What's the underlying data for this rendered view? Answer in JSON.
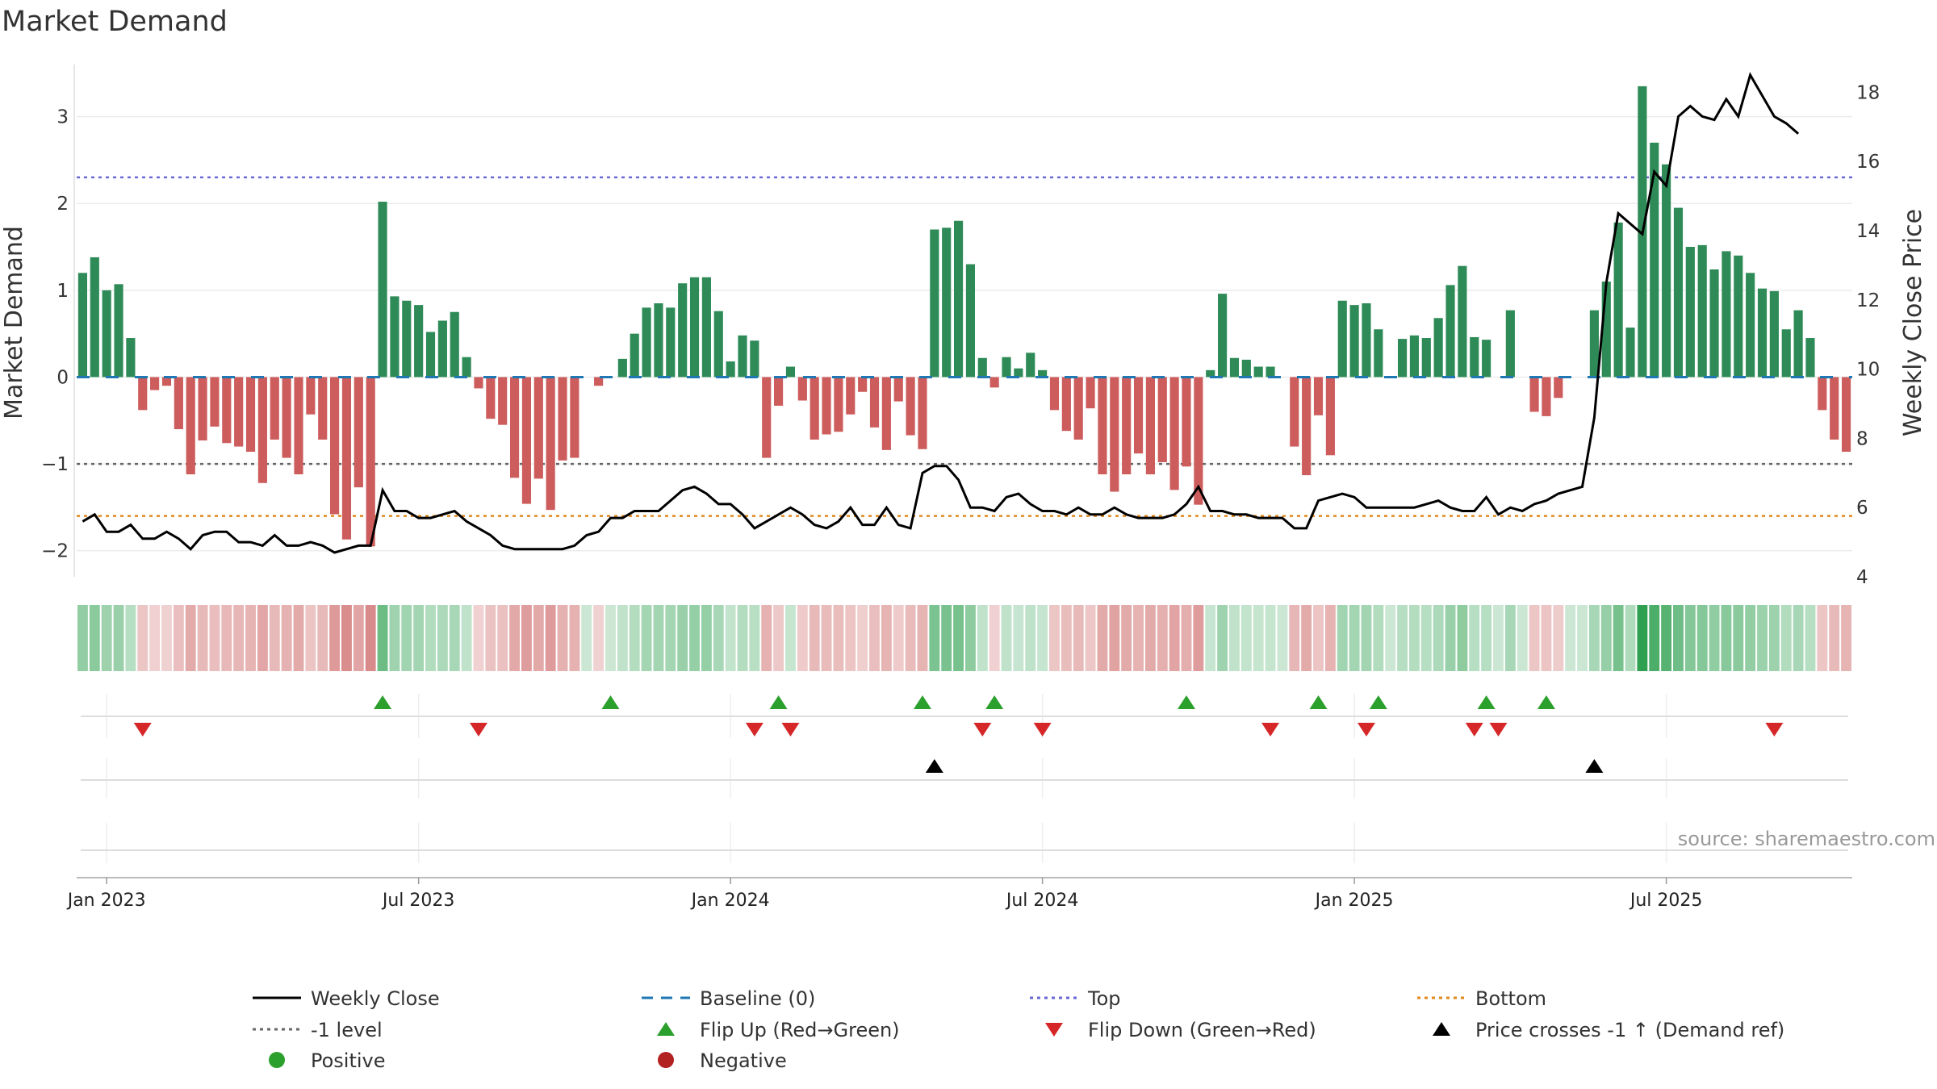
{
  "chart_data": {
    "type": "bar",
    "title": "Market Demand",
    "ylabel_left": "Market Demand",
    "ylabel_right": "Weekly Close Price",
    "ylim_left": [
      -2.3,
      3.6
    ],
    "ylim_right": [
      4,
      18.8
    ],
    "yticks_left": [
      {
        "v": 3,
        "label": "3"
      },
      {
        "v": 2,
        "label": "2"
      },
      {
        "v": 1,
        "label": "1"
      },
      {
        "v": 0,
        "label": "0"
      },
      {
        "v": -1,
        "label": "−1"
      },
      {
        "v": -2,
        "label": "−2"
      }
    ],
    "yticks_right": [
      {
        "v": 18,
        "label": "18"
      },
      {
        "v": 16,
        "label": "16"
      },
      {
        "v": 14,
        "label": "14"
      },
      {
        "v": 12,
        "label": "12"
      },
      {
        "v": 10,
        "label": "10"
      },
      {
        "v": 8,
        "label": "8"
      },
      {
        "v": 6,
        "label": "6"
      },
      {
        "v": 4,
        "label": "4"
      }
    ],
    "xlabels": [
      {
        "week": 2,
        "label": "Jan 2023"
      },
      {
        "week": 28,
        "label": "Jul 2023"
      },
      {
        "week": 54,
        "label": "Jan 2024"
      },
      {
        "week": 80,
        "label": "Jul 2024"
      },
      {
        "week": 106,
        "label": "Jan 2025"
      },
      {
        "week": 132,
        "label": "Jul 2025"
      }
    ],
    "reference_lines": {
      "top": 2.3,
      "bottom": -1.6,
      "minus_one": -1,
      "baseline": 0
    },
    "demand": [
      1.2,
      1.38,
      1.0,
      1.07,
      0.45,
      -0.38,
      -0.15,
      -0.1,
      -0.6,
      -1.12,
      -0.73,
      -0.57,
      -0.76,
      -0.8,
      -0.86,
      -1.22,
      -0.72,
      -0.93,
      -1.12,
      -0.43,
      -0.72,
      -1.58,
      -1.87,
      -1.27,
      -1.95,
      2.02,
      0.93,
      0.88,
      0.83,
      0.52,
      0.65,
      0.75,
      0.23,
      -0.13,
      -0.48,
      -0.55,
      -1.16,
      -1.46,
      -1.17,
      -1.53,
      -0.96,
      -0.93,
      0.0,
      -0.1,
      0.0,
      0.21,
      0.5,
      0.8,
      0.85,
      0.8,
      1.08,
      1.15,
      1.15,
      0.76,
      0.18,
      0.48,
      0.42,
      -0.93,
      -0.33,
      0.12,
      -0.27,
      -0.72,
      -0.66,
      -0.63,
      -0.43,
      -0.17,
      -0.58,
      -0.84,
      -0.28,
      -0.67,
      -0.83,
      1.7,
      1.72,
      1.8,
      1.3,
      0.22,
      -0.12,
      0.23,
      0.1,
      0.28,
      0.08,
      -0.38,
      -0.62,
      -0.72,
      -0.36,
      -1.12,
      -1.32,
      -1.12,
      -0.88,
      -1.12,
      -0.98,
      -1.3,
      -1.03,
      -1.47,
      0.08,
      0.96,
      0.22,
      0.2,
      0.12,
      0.12,
      0.0,
      -0.8,
      -1.13,
      -0.44,
      -0.9,
      0.88,
      0.83,
      0.85,
      0.55,
      0.0,
      0.44,
      0.48,
      0.45,
      0.68,
      1.06,
      1.28,
      0.46,
      0.43,
      0.0,
      0.77,
      0.0,
      -0.4,
      -0.45,
      -0.24,
      0.0,
      0.0,
      0.77,
      1.1,
      1.78,
      0.57,
      3.35,
      2.7,
      2.45,
      1.95,
      1.5,
      1.52,
      1.24,
      1.45,
      1.4,
      1.2,
      1.02,
      0.99,
      0.55,
      0.77,
      0.45,
      -0.38,
      -0.72,
      -0.86
    ],
    "weekly_close": [
      5.6,
      5.8,
      5.3,
      5.3,
      5.5,
      5.1,
      5.1,
      5.3,
      5.1,
      4.8,
      5.2,
      5.3,
      5.3,
      5.0,
      5.0,
      4.9,
      5.2,
      4.9,
      4.9,
      5.0,
      4.9,
      4.7,
      4.8,
      4.9,
      4.9,
      6.5,
      5.9,
      5.9,
      5.7,
      5.7,
      5.8,
      5.9,
      5.6,
      5.4,
      5.2,
      4.9,
      4.8,
      4.8,
      4.8,
      4.8,
      4.8,
      4.9,
      5.2,
      5.3,
      5.7,
      5.7,
      5.9,
      5.9,
      5.9,
      6.2,
      6.5,
      6.6,
      6.4,
      6.1,
      6.1,
      5.8,
      5.4,
      5.6,
      5.8,
      6.0,
      5.8,
      5.5,
      5.4,
      5.6,
      6.0,
      5.5,
      5.5,
      6.0,
      5.5,
      5.4,
      7.0,
      7.2,
      7.2,
      6.8,
      6.0,
      6.0,
      5.9,
      6.3,
      6.4,
      6.1,
      5.9,
      5.9,
      5.8,
      6.0,
      5.8,
      5.8,
      6.0,
      5.8,
      5.7,
      5.7,
      5.7,
      5.8,
      6.1,
      6.6,
      5.9,
      5.9,
      5.8,
      5.8,
      5.7,
      5.7,
      5.7,
      5.4,
      5.4,
      6.2,
      6.3,
      6.4,
      6.3,
      6.0,
      6.0,
      6.0,
      6.0,
      6.0,
      6.1,
      6.2,
      6.0,
      5.9,
      5.9,
      6.3,
      5.8,
      6.0,
      5.9,
      6.1,
      6.2,
      6.4,
      6.5,
      6.6,
      8.6,
      12.5,
      14.5,
      14.2,
      13.9,
      15.7,
      15.3,
      17.3,
      17.6,
      17.3,
      17.2,
      17.8,
      17.3,
      18.5,
      17.9,
      17.3,
      17.1,
      16.8
    ],
    "flips_up": [
      25,
      44,
      58,
      70,
      76,
      92,
      103,
      108,
      117,
      122
    ],
    "flips_down": [
      5,
      33,
      56,
      59,
      75,
      80,
      99,
      107,
      116,
      118,
      141
    ],
    "price_crosses": [
      71,
      126
    ],
    "legend": [
      {
        "label": "Weekly Close",
        "symbol": "line-solid",
        "color": "#000000"
      },
      {
        "label": "Baseline (0)",
        "symbol": "line-dash",
        "color": "#1f77b4"
      },
      {
        "label": "Top",
        "symbol": "line-dot",
        "color": "#6a6ad6"
      },
      {
        "label": "Bottom",
        "symbol": "line-dot",
        "color": "#e08a1e"
      },
      {
        "label": "-1 level",
        "symbol": "line-dot",
        "color": "#666666"
      },
      {
        "label": "Flip Up (Red→Green)",
        "symbol": "tri-up",
        "color": "#2ca02c"
      },
      {
        "label": "Flip Down (Green→Red)",
        "symbol": "tri-down",
        "color": "#d62728"
      },
      {
        "label": "Price crosses -1 ↑ (Demand ref)",
        "symbol": "tri-up",
        "color": "#000000"
      },
      {
        "label": "Positive",
        "symbol": "dot",
        "color": "#2ca02c"
      },
      {
        "label": "Negative",
        "symbol": "dot",
        "color": "#b22222"
      }
    ],
    "colors": {
      "positive": "#2e8b57",
      "negative": "#cd5c5c"
    },
    "source": "source: sharemaestro.com"
  }
}
